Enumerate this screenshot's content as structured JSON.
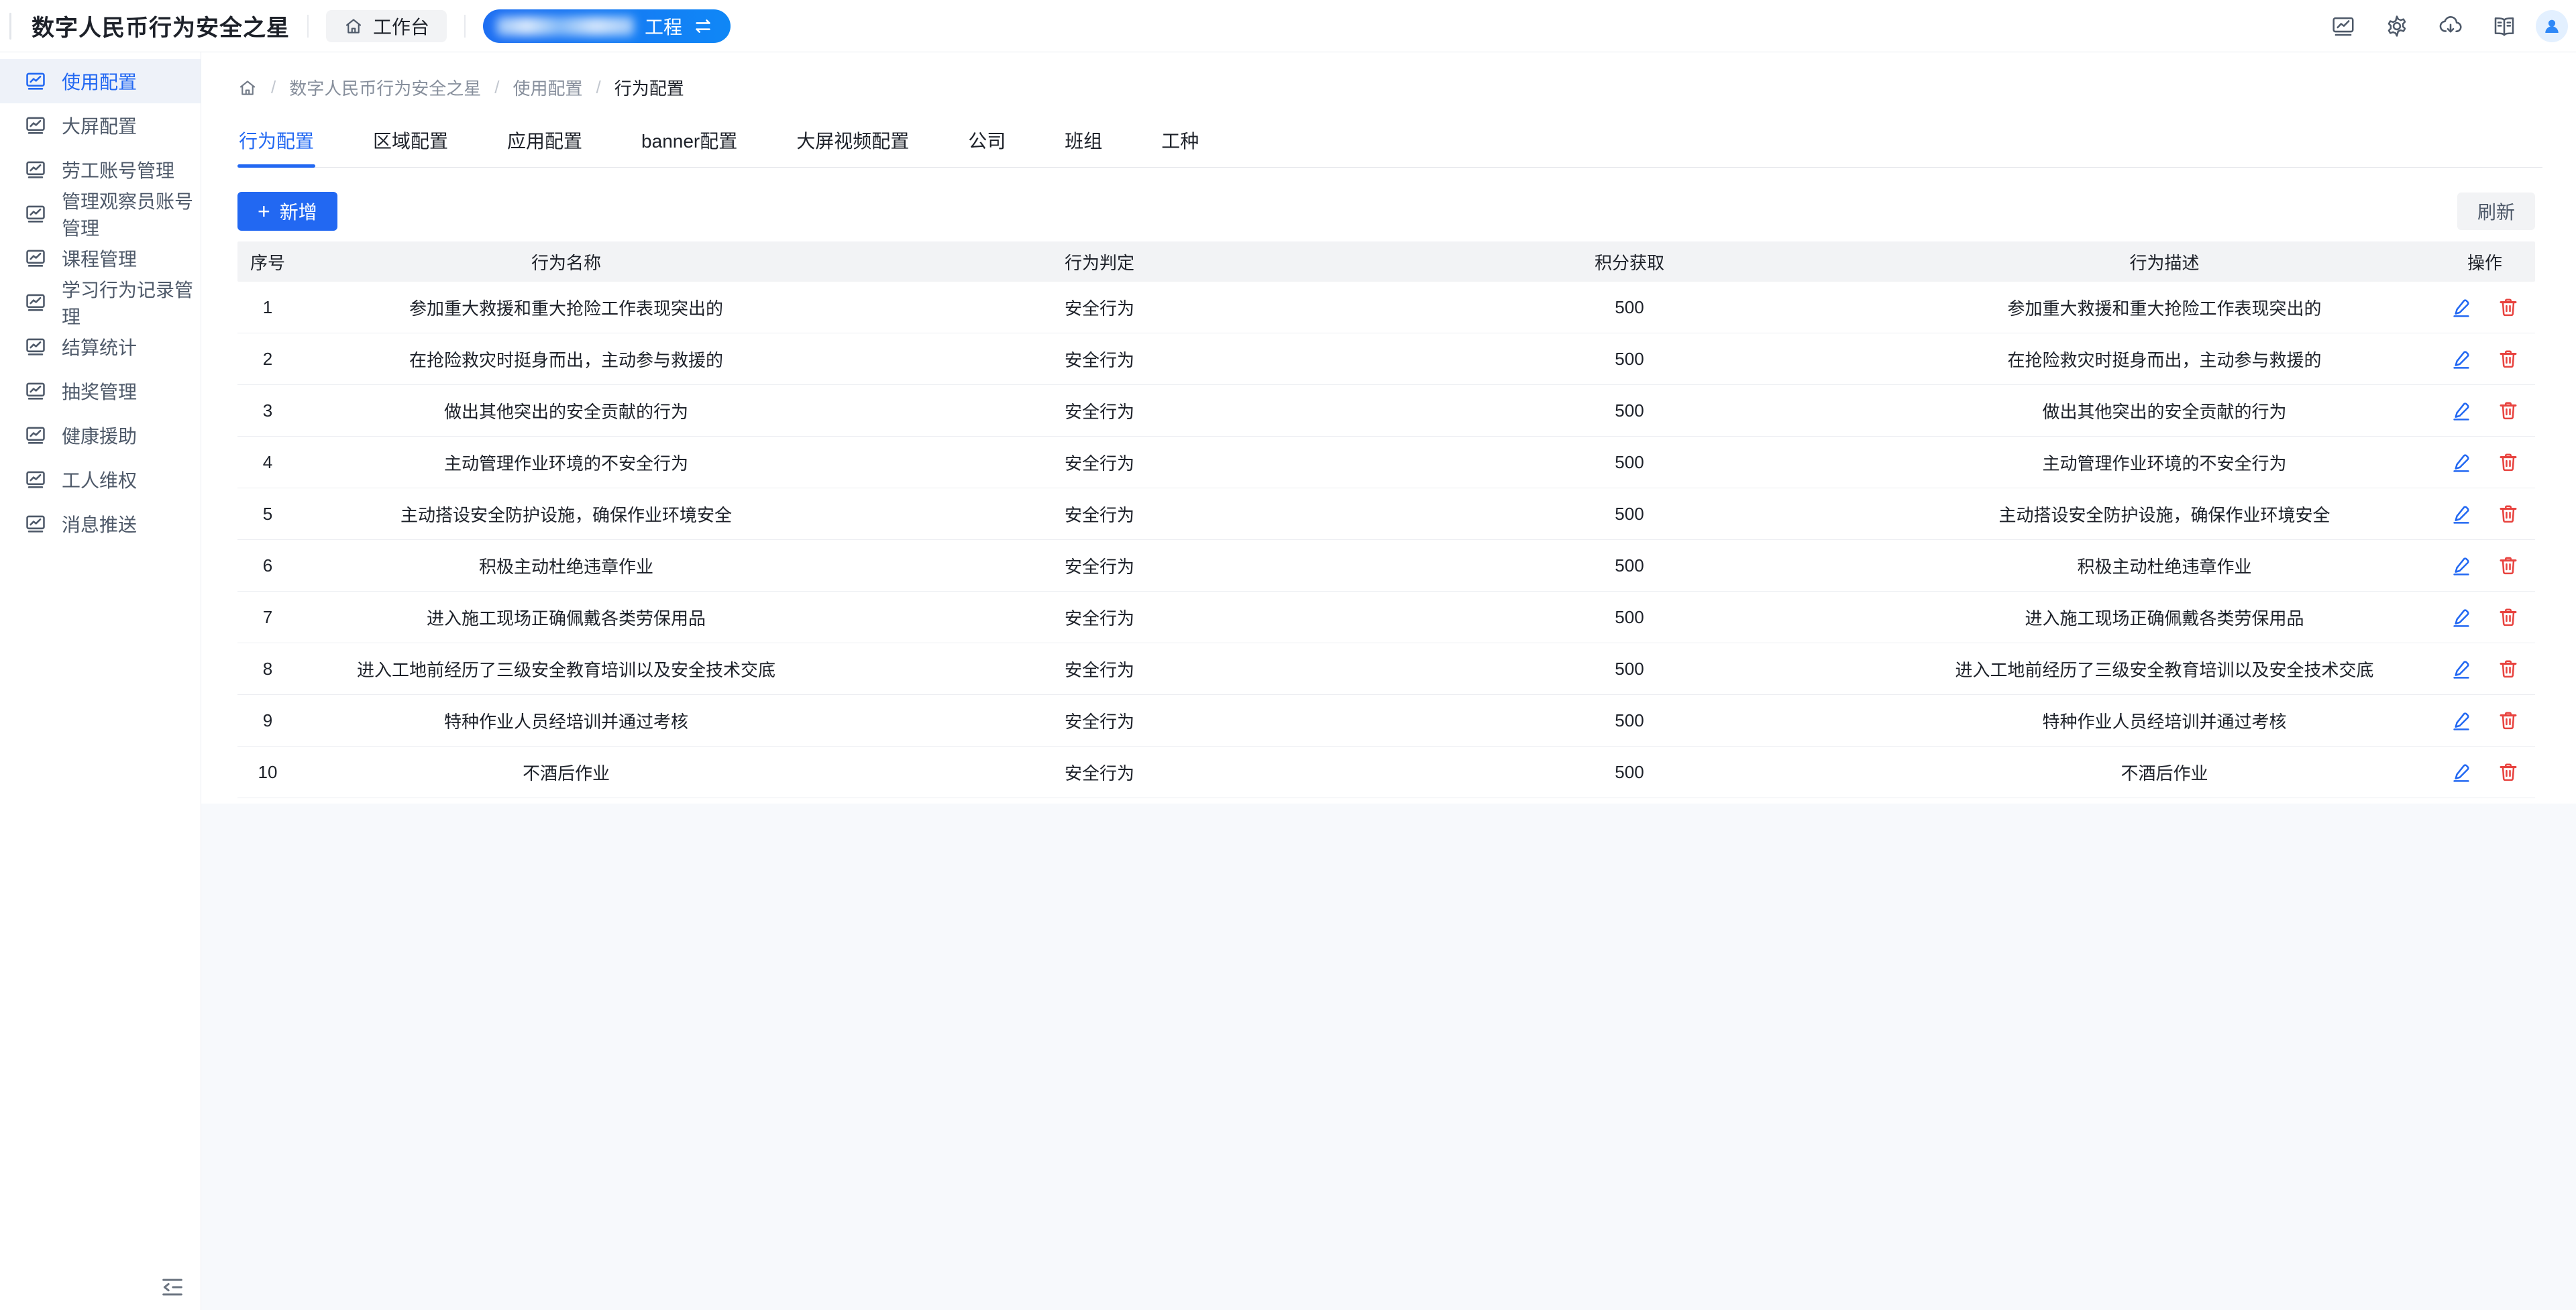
{
  "colors": {
    "primary": "#2268f2",
    "danger": "#e8433f",
    "pagebg": "#f7f9fc"
  },
  "header": {
    "app_title": "数字人民币行为安全之星",
    "workbench_label": "工作台",
    "project": {
      "redacted": true,
      "visible_suffix": "工程"
    },
    "action_icons": [
      {
        "name": "dashboard"
      },
      {
        "name": "settings"
      },
      {
        "name": "cloud-download"
      },
      {
        "name": "docs"
      }
    ]
  },
  "sidebar": {
    "items": [
      {
        "label": "使用配置",
        "active": true
      },
      {
        "label": "大屏配置",
        "active": false
      },
      {
        "label": "劳工账号管理",
        "active": false
      },
      {
        "label": "管理观察员账号管理",
        "active": false
      },
      {
        "label": "课程管理",
        "active": false
      },
      {
        "label": "学习行为记录管理",
        "active": false
      },
      {
        "label": "结算统计",
        "active": false
      },
      {
        "label": "抽奖管理",
        "active": false
      },
      {
        "label": "健康援助",
        "active": false
      },
      {
        "label": "工人维权",
        "active": false
      },
      {
        "label": "消息推送",
        "active": false
      }
    ]
  },
  "breadcrumb": {
    "separator": "/",
    "items": [
      "数字人民币行为安全之星",
      "使用配置",
      "行为配置"
    ]
  },
  "tabs": [
    {
      "label": "行为配置",
      "active": true
    },
    {
      "label": "区域配置",
      "active": false
    },
    {
      "label": "应用配置",
      "active": false
    },
    {
      "label": "banner配置",
      "active": false
    },
    {
      "label": "大屏视频配置",
      "active": false
    },
    {
      "label": "公司",
      "active": false
    },
    {
      "label": "班组",
      "active": false
    },
    {
      "label": "工种",
      "active": false
    }
  ],
  "toolbar": {
    "add_icon": "+",
    "add_label": "新增",
    "refresh_label": "刷新"
  },
  "table": {
    "columns": [
      "序号",
      "行为名称",
      "行为判定",
      "积分获取",
      "行为描述",
      "操作"
    ],
    "rows": [
      {
        "index": "1",
        "name": "参加重大救援和重大抢险工作表现突出的",
        "judge": "安全行为",
        "points": "500",
        "desc": "参加重大救援和重大抢险工作表现突出的"
      },
      {
        "index": "2",
        "name": "在抢险救灾时挺身而出，主动参与救援的",
        "judge": "安全行为",
        "points": "500",
        "desc": "在抢险救灾时挺身而出，主动参与救援的"
      },
      {
        "index": "3",
        "name": "做出其他突出的安全贡献的行为",
        "judge": "安全行为",
        "points": "500",
        "desc": "做出其他突出的安全贡献的行为"
      },
      {
        "index": "4",
        "name": "主动管理作业环境的不安全行为",
        "judge": "安全行为",
        "points": "500",
        "desc": "主动管理作业环境的不安全行为"
      },
      {
        "index": "5",
        "name": "主动搭设安全防护设施，确保作业环境安全",
        "judge": "安全行为",
        "points": "500",
        "desc": "主动搭设安全防护设施，确保作业环境安全"
      },
      {
        "index": "6",
        "name": "积极主动杜绝违章作业",
        "judge": "安全行为",
        "points": "500",
        "desc": "积极主动杜绝违章作业"
      },
      {
        "index": "7",
        "name": "进入施工现场正确佩戴各类劳保用品",
        "judge": "安全行为",
        "points": "500",
        "desc": "进入施工现场正确佩戴各类劳保用品"
      },
      {
        "index": "8",
        "name": "进入工地前经历了三级安全教育培训以及安全技术交底",
        "judge": "安全行为",
        "points": "500",
        "desc": "进入工地前经历了三级安全教育培训以及安全技术交底"
      },
      {
        "index": "9",
        "name": "特种作业人员经培训并通过考核",
        "judge": "安全行为",
        "points": "500",
        "desc": "特种作业人员经培训并通过考核"
      },
      {
        "index": "10",
        "name": "不酒后作业",
        "judge": "安全行为",
        "points": "500",
        "desc": "不酒后作业"
      }
    ]
  }
}
